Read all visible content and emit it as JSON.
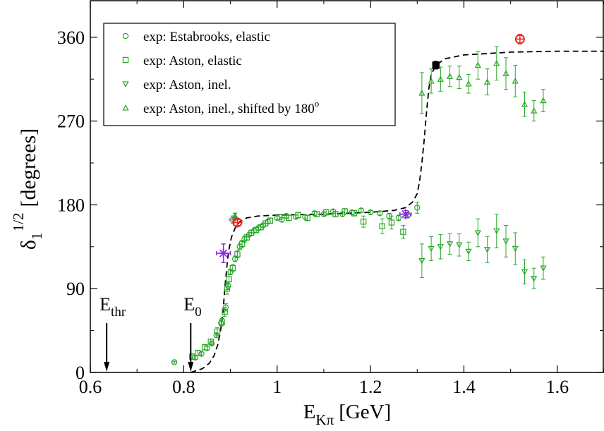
{
  "chart_data": {
    "type": "scatter",
    "title": "",
    "xlabel": {
      "main": "E",
      "sub": "Kπ",
      "unit": "[GeV]"
    },
    "ylabel": {
      "main": "δ",
      "sub": "1",
      "sup": "1/2",
      "unit": "[degrees]"
    },
    "xlim": [
      0.6,
      1.7
    ],
    "ylim": [
      0,
      400
    ],
    "xticks": [
      0.6,
      0.8,
      1.0,
      1.2,
      1.4,
      1.6
    ],
    "xtick_labels": [
      "0.6",
      "0.8",
      "1",
      "1.2",
      "1.4",
      "1.6"
    ],
    "yticks": [
      0,
      90,
      180,
      270,
      360
    ],
    "ytick_labels": [
      "0",
      "90",
      "180",
      "270",
      "360"
    ],
    "grid": false,
    "legend_position": "top-left",
    "colors": {
      "data": "#27a827",
      "fit": "#000000",
      "red": "#e8251f",
      "purple": "#8a2be2",
      "gray": "#999999",
      "axis": "#000000"
    },
    "legend": [
      {
        "marker": "circle",
        "label": "exp: Estabrooks, elastic"
      },
      {
        "marker": "square",
        "label": "exp: Aston, elastic"
      },
      {
        "marker": "triangle-down",
        "label": "exp: Aston, inel."
      },
      {
        "marker": "triangle-up",
        "label": "exp: Aston, inel., shifted by 180",
        "sup": "o"
      }
    ],
    "annotations": [
      {
        "name": "ethr",
        "label": "E",
        "sub": "thr",
        "x": 0.635
      },
      {
        "name": "e0",
        "label": "E",
        "sub": "0",
        "x": 0.815
      }
    ],
    "series": [
      {
        "name": "exp: Estabrooks, elastic",
        "marker": "circle",
        "points": [
          [
            0.78,
            11,
            1
          ],
          [
            0.825,
            16,
            2
          ],
          [
            0.838,
            20,
            2
          ],
          [
            0.85,
            26,
            2
          ],
          [
            0.86,
            31,
            2
          ],
          [
            0.87,
            40,
            2
          ],
          [
            0.88,
            53,
            3
          ],
          [
            0.89,
            70,
            4
          ],
          [
            0.895,
            93,
            4
          ],
          [
            0.9,
            108,
            3
          ],
          [
            0.91,
            122,
            3
          ],
          [
            0.92,
            135,
            3
          ],
          [
            0.93,
            143,
            3
          ],
          [
            0.94,
            148,
            2
          ],
          [
            0.95,
            152,
            2
          ],
          [
            0.96,
            155,
            2
          ],
          [
            0.97,
            158,
            2
          ],
          [
            0.98,
            162,
            2
          ],
          [
            1.0,
            166,
            2
          ],
          [
            1.01,
            164,
            2
          ],
          [
            1.02,
            168,
            2
          ],
          [
            1.04,
            167,
            2
          ],
          [
            1.06,
            167,
            2
          ],
          [
            1.08,
            171,
            2
          ],
          [
            1.1,
            170,
            2
          ],
          [
            1.12,
            173,
            2
          ],
          [
            1.14,
            170,
            2
          ],
          [
            1.16,
            172,
            2
          ],
          [
            1.18,
            174,
            2
          ],
          [
            1.2,
            172,
            2
          ],
          [
            1.22,
            171,
            2
          ],
          [
            1.24,
            168,
            3
          ],
          [
            1.26,
            166,
            3
          ],
          [
            1.28,
            169,
            3
          ],
          [
            1.3,
            177,
            6
          ]
        ]
      },
      {
        "name": "exp: Aston, elastic",
        "marker": "square",
        "points": [
          [
            0.818,
            17,
            3
          ],
          [
            0.83,
            21,
            3
          ],
          [
            0.845,
            27,
            3
          ],
          [
            0.858,
            33,
            3
          ],
          [
            0.872,
            44,
            4
          ],
          [
            0.882,
            54,
            4
          ],
          [
            0.888,
            65,
            5
          ],
          [
            0.893,
            90,
            6
          ],
          [
            0.897,
            100,
            5
          ],
          [
            0.905,
            112,
            4
          ],
          [
            0.915,
            127,
            4
          ],
          [
            0.925,
            138,
            4
          ],
          [
            0.935,
            145,
            3
          ],
          [
            0.945,
            150,
            3
          ],
          [
            0.955,
            153,
            3
          ],
          [
            0.965,
            156,
            3
          ],
          [
            0.975,
            160,
            3
          ],
          [
            0.985,
            163,
            3
          ],
          [
            1.005,
            167,
            3
          ],
          [
            1.025,
            166,
            3
          ],
          [
            1.045,
            169,
            3
          ],
          [
            1.065,
            166,
            3
          ],
          [
            1.085,
            170,
            3
          ],
          [
            1.105,
            172,
            3
          ],
          [
            1.125,
            170,
            3
          ],
          [
            1.145,
            173,
            3
          ],
          [
            1.165,
            171,
            3
          ],
          [
            1.185,
            162,
            6
          ],
          [
            1.225,
            157,
            8
          ],
          [
            1.245,
            161,
            7
          ],
          [
            1.27,
            151,
            7
          ]
        ]
      },
      {
        "name": "exp: Aston, inel.",
        "marker": "triangle-down",
        "points": [
          [
            1.31,
            120,
            18
          ],
          [
            1.33,
            133,
            13
          ],
          [
            1.35,
            135,
            13
          ],
          [
            1.37,
            138,
            11
          ],
          [
            1.39,
            137,
            12
          ],
          [
            1.41,
            130,
            10
          ],
          [
            1.43,
            150,
            15
          ],
          [
            1.45,
            132,
            14
          ],
          [
            1.47,
            152,
            18
          ],
          [
            1.49,
            141,
            17
          ],
          [
            1.51,
            133,
            17
          ],
          [
            1.53,
            108,
            13
          ],
          [
            1.55,
            101,
            11
          ],
          [
            1.57,
            112,
            12
          ]
        ]
      },
      {
        "name": "exp: Aston, inel., shifted by 180",
        "marker": "triangle-up",
        "points": [
          [
            1.31,
            300,
            22
          ],
          [
            1.33,
            313,
            13
          ],
          [
            1.35,
            315,
            13
          ],
          [
            1.37,
            318,
            11
          ],
          [
            1.39,
            317,
            12
          ],
          [
            1.41,
            310,
            10
          ],
          [
            1.43,
            330,
            15
          ],
          [
            1.45,
            312,
            14
          ],
          [
            1.47,
            332,
            18
          ],
          [
            1.49,
            321,
            17
          ],
          [
            1.51,
            313,
            17
          ],
          [
            1.53,
            288,
            13
          ],
          [
            1.55,
            281,
            11
          ],
          [
            1.57,
            292,
            12
          ]
        ]
      }
    ],
    "fit_curve": {
      "style": "dashed",
      "points": [
        [
          0.815,
          0
        ],
        [
          0.84,
          4
        ],
        [
          0.855,
          10
        ],
        [
          0.865,
          18
        ],
        [
          0.873,
          30
        ],
        [
          0.879,
          45
        ],
        [
          0.884,
          65
        ],
        [
          0.888,
          90
        ],
        [
          0.892,
          112
        ],
        [
          0.896,
          130
        ],
        [
          0.902,
          145
        ],
        [
          0.91,
          155
        ],
        [
          0.92,
          162
        ],
        [
          0.935,
          166
        ],
        [
          0.96,
          168
        ],
        [
          1.0,
          169
        ],
        [
          1.1,
          170
        ],
        [
          1.2,
          172
        ],
        [
          1.25,
          174
        ],
        [
          1.275,
          177
        ],
        [
          1.29,
          183
        ],
        [
          1.3,
          192
        ],
        [
          1.305,
          205
        ],
        [
          1.31,
          225
        ],
        [
          1.315,
          250
        ],
        [
          1.32,
          280
        ],
        [
          1.325,
          305
        ],
        [
          1.33,
          320
        ],
        [
          1.34,
          330
        ],
        [
          1.36,
          337
        ],
        [
          1.4,
          341
        ],
        [
          1.5,
          344
        ],
        [
          1.6,
          345
        ],
        [
          1.7,
          345
        ]
      ]
    },
    "special_points": [
      {
        "name": "purple-star-1",
        "x": 0.885,
        "y": 128,
        "xerr": 0.015,
        "yerr": 10,
        "marker": "star",
        "color": "purple"
      },
      {
        "name": "purple-star-2",
        "x": 1.275,
        "y": 170,
        "xerr": 0.012,
        "yerr": 4,
        "marker": "star",
        "color": "purple"
      },
      {
        "name": "gray-diamond",
        "x": 0.905,
        "y": 164,
        "xerr": 0.004,
        "yerr": 4,
        "marker": "diamond",
        "color": "gray"
      },
      {
        "name": "dark-green-triangle",
        "x": 0.91,
        "y": 168,
        "xerr": 0,
        "yerr": 3,
        "marker": "triangle-up-filled",
        "color": "data"
      },
      {
        "name": "red-circle-1",
        "x": 0.915,
        "y": 161,
        "xerr": 0,
        "yerr": 3,
        "marker": "circle-cross",
        "color": "red"
      },
      {
        "name": "red-circle-2",
        "x": 1.52,
        "y": 358,
        "xerr": 0,
        "yerr": 5,
        "marker": "circle-cross",
        "color": "red"
      },
      {
        "name": "black-square",
        "x": 1.34,
        "y": 330,
        "xerr": 0.006,
        "yerr": 4,
        "marker": "square-filled",
        "color": "fit"
      }
    ]
  }
}
